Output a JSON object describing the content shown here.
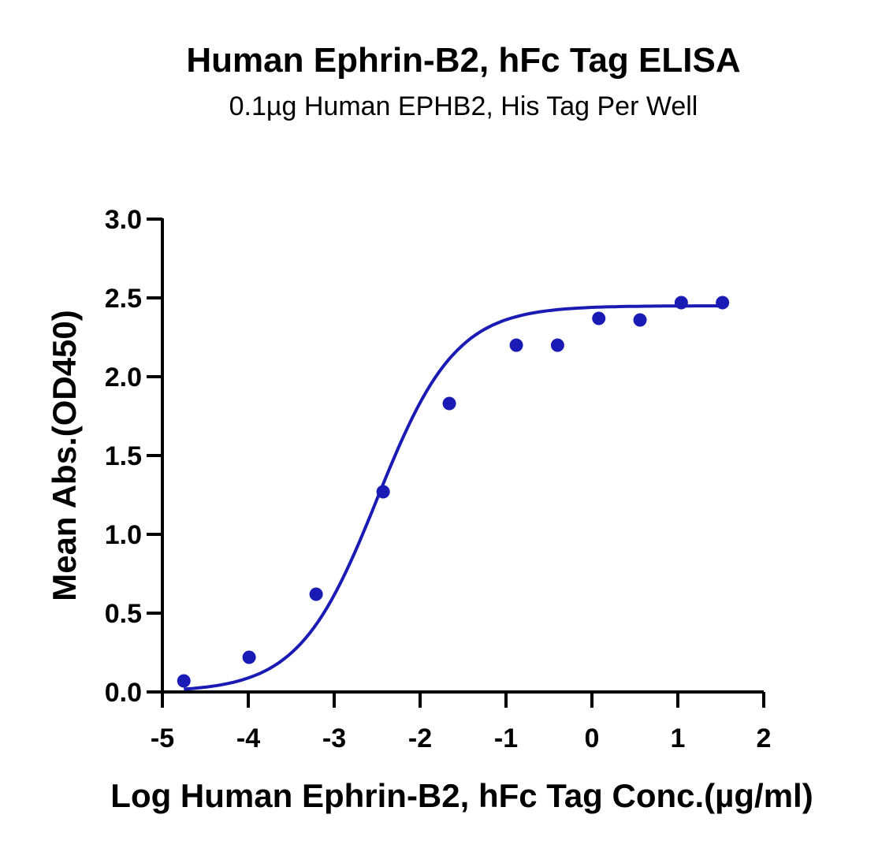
{
  "chart_data": {
    "type": "scatter",
    "title": "Human Ephrin-B2, hFc Tag ELISA",
    "subtitle": "0.1µg Human EPHB2, His Tag Per Well",
    "xlabel": "Log Human Ephrin-B2, hFc Tag Conc.(µg/ml)",
    "ylabel": "Mean Abs.(OD450)",
    "xlim": [
      -5,
      2
    ],
    "ylim": [
      0,
      3
    ],
    "xticks": [
      "-5",
      "-4",
      "-3",
      "-2",
      "-1",
      "0",
      "1",
      "2"
    ],
    "yticks": [
      "0.0",
      "0.5",
      "1.0",
      "1.5",
      "2.0",
      "2.5",
      "3.0"
    ],
    "grid": false,
    "legend": "none",
    "colors": {
      "series": "#1a1ab4"
    },
    "series": [
      {
        "x": [
          -4.75,
          -3.99,
          -3.21,
          -2.43,
          -1.66,
          -0.88,
          -0.4,
          0.08,
          0.56,
          1.04,
          1.52
        ],
        "y": [
          0.07,
          0.22,
          0.62,
          1.27,
          1.83,
          2.2,
          2.2,
          2.37,
          2.36,
          2.47,
          2.47
        ]
      }
    ],
    "fit": {
      "model": "4PL",
      "bottom": 0.0,
      "top": 2.45,
      "logEC50": -2.5,
      "hill": 0.95
    }
  }
}
